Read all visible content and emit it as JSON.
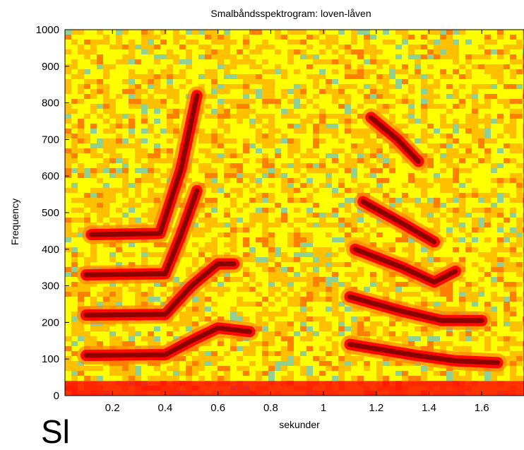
{
  "chart_data": {
    "type": "heatmap",
    "title": "Smalbåndsspektrogram: loven-låven",
    "xlabel": "sekunder",
    "ylabel": "Frequency",
    "xlim": [
      0.02,
      1.76
    ],
    "ylim": [
      0,
      1000
    ],
    "xticks": [
      0.2,
      0.4,
      0.6,
      0.8,
      1,
      1.2,
      1.4,
      1.6
    ],
    "yticks": [
      0,
      100,
      200,
      300,
      400,
      500,
      600,
      700,
      800,
      900,
      1000
    ],
    "colormap": [
      "#90d090",
      "#ffff00",
      "#ff8000",
      "#ff0000",
      "#800000"
    ],
    "harmonic_tracks": [
      {
        "name": "",
        "points": [
          [
            0.1,
            110
          ],
          [
            0.4,
            112
          ],
          [
            0.5,
            150
          ],
          [
            0.6,
            185
          ],
          [
            0.72,
            175
          ]
        ]
      },
      {
        "name": "",
        "points": [
          [
            0.1,
            220
          ],
          [
            0.4,
            222
          ],
          [
            0.5,
            300
          ],
          [
            0.6,
            360
          ],
          [
            0.66,
            360
          ]
        ]
      },
      {
        "name": "",
        "points": [
          [
            0.1,
            330
          ],
          [
            0.4,
            333
          ],
          [
            0.46,
            440
          ],
          [
            0.52,
            560
          ]
        ]
      },
      {
        "name": "",
        "points": [
          [
            0.12,
            440
          ],
          [
            0.38,
            443
          ],
          [
            0.46,
            620
          ],
          [
            0.52,
            820
          ]
        ]
      },
      {
        "name": "",
        "points": [
          [
            1.1,
            140
          ],
          [
            1.35,
            110
          ],
          [
            1.5,
            95
          ],
          [
            1.66,
            90
          ]
        ]
      },
      {
        "name": "",
        "points": [
          [
            1.1,
            270
          ],
          [
            1.3,
            230
          ],
          [
            1.45,
            205
          ],
          [
            1.6,
            205
          ]
        ]
      },
      {
        "name": "",
        "points": [
          [
            1.12,
            400
          ],
          [
            1.3,
            350
          ],
          [
            1.42,
            310
          ],
          [
            1.5,
            340
          ]
        ]
      },
      {
        "name": "",
        "points": [
          [
            1.15,
            530
          ],
          [
            1.3,
            470
          ],
          [
            1.42,
            420
          ]
        ]
      },
      {
        "name": "",
        "points": [
          [
            1.18,
            760
          ],
          [
            1.28,
            700
          ],
          [
            1.36,
            640
          ]
        ]
      }
    ]
  },
  "caption": "Sl"
}
